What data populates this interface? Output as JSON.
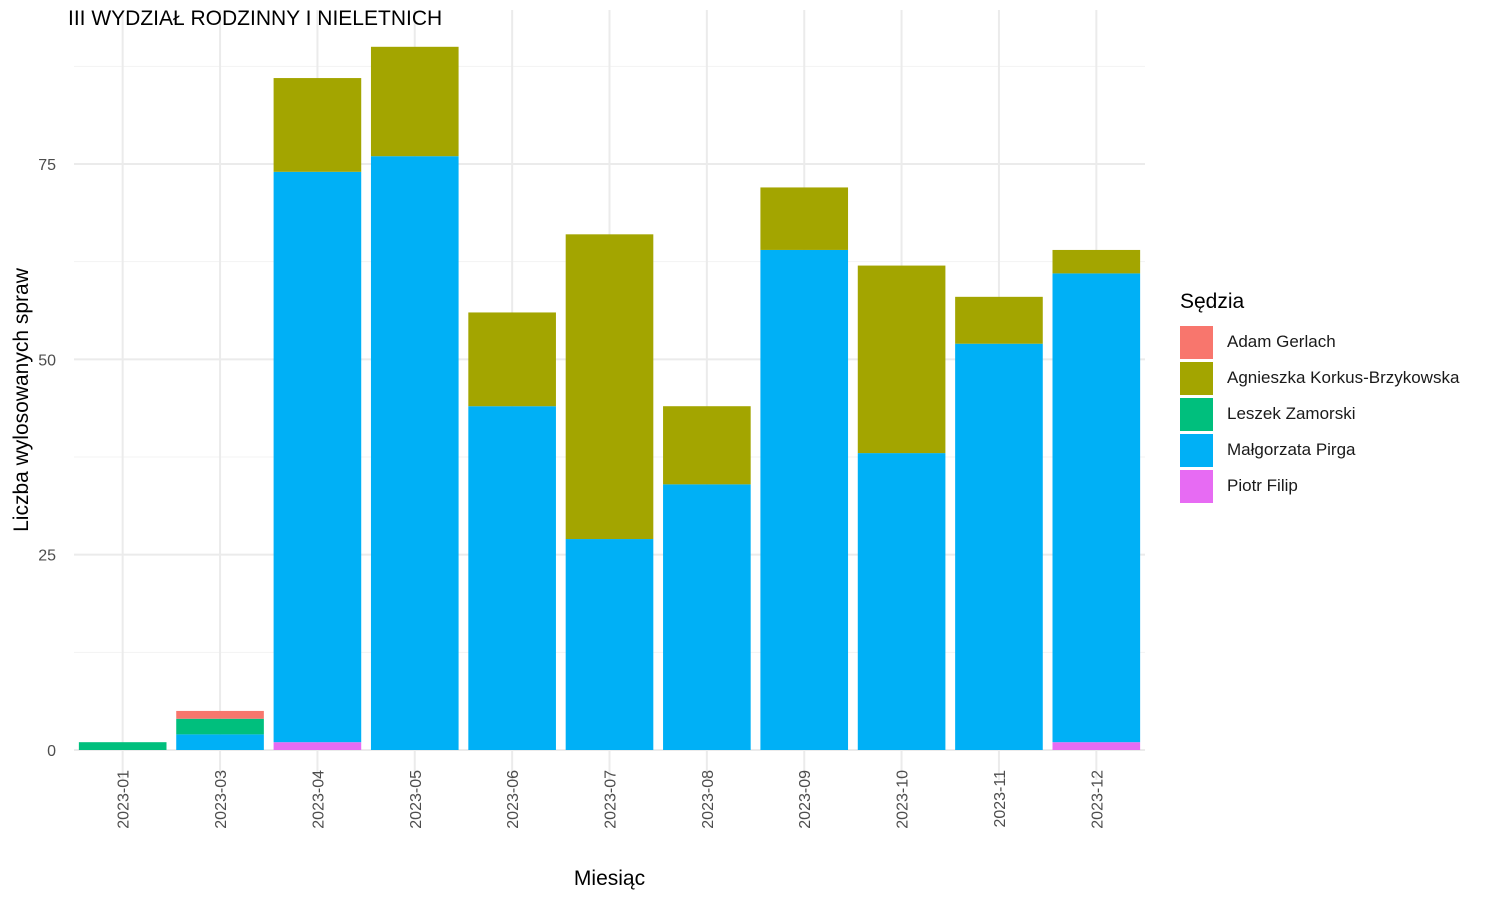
{
  "chart_data": {
    "type": "bar",
    "stacked": true,
    "title": "III WYDZIAŁ RODZINNY I NIELETNICH",
    "xlabel": "Miesiąc",
    "ylabel": "Liczba wylosowanych spraw",
    "ylim": [
      0,
      90
    ],
    "yticks": [
      0,
      25,
      50,
      75
    ],
    "grid": true,
    "legend": {
      "title": "Sędzia",
      "placement": "right"
    },
    "categories": [
      "2023-01",
      "2023-03",
      "2023-04",
      "2023-05",
      "2023-06",
      "2023-07",
      "2023-08",
      "2023-09",
      "2023-10",
      "2023-11",
      "2023-12"
    ],
    "stack_order_bottom_to_top": [
      "Piotr Filip",
      "Małgorzata Pirga",
      "Leszek Zamorski",
      "Adam Gerlach",
      "Agnieszka Korkus-Brzykowska"
    ],
    "series": [
      {
        "name": "Adam Gerlach",
        "color": "#F8766D",
        "values": [
          0,
          1,
          0,
          0,
          0,
          0,
          0,
          0,
          0,
          0,
          0
        ]
      },
      {
        "name": "Agnieszka Korkus-Brzykowska",
        "color": "#A3A500",
        "values": [
          0,
          0,
          12,
          14,
          12,
          39,
          10,
          8,
          24,
          6,
          3
        ]
      },
      {
        "name": "Leszek Zamorski",
        "color": "#00BF7D",
        "values": [
          1,
          2,
          0,
          0,
          0,
          0,
          0,
          0,
          0,
          0,
          0
        ]
      },
      {
        "name": "Małgorzata Pirga",
        "color": "#00B0F6",
        "values": [
          0,
          2,
          73,
          76,
          44,
          27,
          34,
          64,
          38,
          52,
          60
        ]
      },
      {
        "name": "Piotr Filip",
        "color": "#E76BF3",
        "values": [
          0,
          0,
          1,
          0,
          0,
          0,
          0,
          0,
          0,
          0,
          1
        ]
      }
    ]
  }
}
